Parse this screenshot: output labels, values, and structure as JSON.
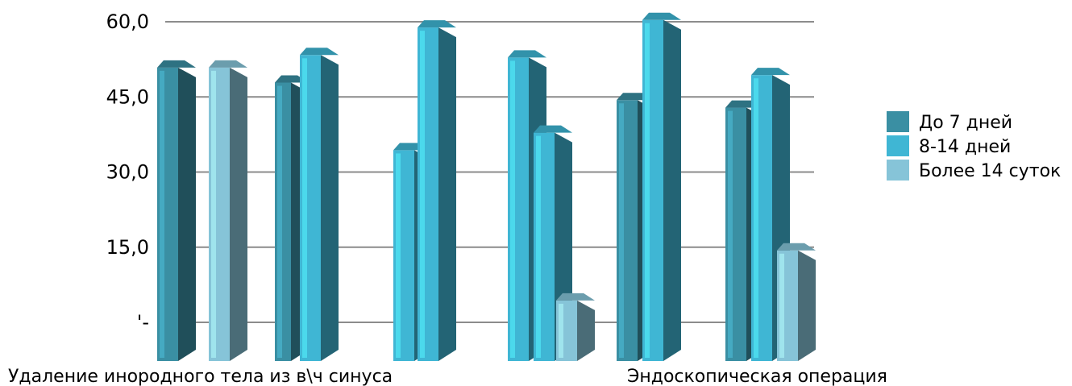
{
  "chart_data": {
    "type": "bar",
    "ylim": [
      0,
      60
    ],
    "yticks": [
      {
        "value": 60,
        "label": "60,0"
      },
      {
        "value": 45,
        "label": "45,0"
      },
      {
        "value": 30,
        "label": "30,0"
      },
      {
        "value": 15,
        "label": "15,0"
      },
      {
        "value": 0,
        "label": "'-"
      }
    ],
    "grid": true,
    "legend_position": "right",
    "category_labels": [
      "Удаление инородного тела из в\\ч синуса",
      "Эндоскопическая операция"
    ],
    "series": [
      {
        "name": "До 7 дней",
        "color": "#3a8fa3"
      },
      {
        "name": "8-14 дней",
        "color": "#3fb6d4"
      },
      {
        "name": "Более 14 суток",
        "color": "#86c4d8"
      }
    ],
    "bars": [
      {
        "group": 1,
        "series": 1,
        "value": 51.5
      },
      {
        "group": 1,
        "series": 3,
        "value": 51.5
      },
      {
        "group": 2,
        "series": 1,
        "value": 48.5
      },
      {
        "group": 2,
        "series": 2,
        "value": 54.0
      },
      {
        "group": 3,
        "series": 2,
        "value": 35.0
      },
      {
        "group": 3,
        "series": 2,
        "value": 59.5
      },
      {
        "group": 4,
        "series": 2,
        "value": 53.5
      },
      {
        "group": 4,
        "series": 2,
        "value": 38.5
      },
      {
        "group": 4,
        "series": 3,
        "value": 5.0
      },
      {
        "group": 5,
        "series": 1,
        "value": 45.0
      },
      {
        "group": 5,
        "series": 2,
        "value": 61.0
      },
      {
        "group": 6,
        "series": 1,
        "value": 43.5
      },
      {
        "group": 6,
        "series": 2,
        "value": 50.0
      },
      {
        "group": 6,
        "series": 3,
        "value": 15.0
      }
    ]
  }
}
